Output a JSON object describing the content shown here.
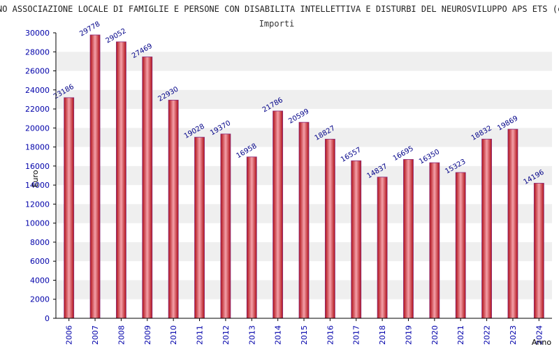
{
  "colors": {
    "bar_center": "#f4a0a8",
    "bar_edge": "#b01018",
    "bar_border": "#8a2a7a",
    "stripe": "#efefef",
    "axis": "#000000"
  },
  "chart_data": {
    "type": "bar",
    "title": "NO ASSOCIAZIONE LOCALE DI FAMIGLIE E PERSONE CON DISABILITA INTELLETTIVA E DISTURBI DEL NEUROSVILUPPO APS ETS (c.f",
    "subtitle": "Importi",
    "xlabel": "Anno",
    "ylabel": "Euro",
    "ylim": [
      0,
      30000
    ],
    "ytick_step": 2000,
    "categories": [
      "2006",
      "2007",
      "2008",
      "2009",
      "2010",
      "2011",
      "2012",
      "2013",
      "2014",
      "2015",
      "2016",
      "2017",
      "2018",
      "2019",
      "2020",
      "2021",
      "2022",
      "2023",
      "2024"
    ],
    "values": [
      23186,
      29778,
      29052,
      27469,
      22930,
      19028,
      19370,
      16958,
      21786,
      20599,
      18827,
      16557,
      14837,
      16695,
      16350,
      15323,
      18832,
      19869,
      14196
    ],
    "grid": "alternating horizontal bands",
    "legend": "none"
  }
}
